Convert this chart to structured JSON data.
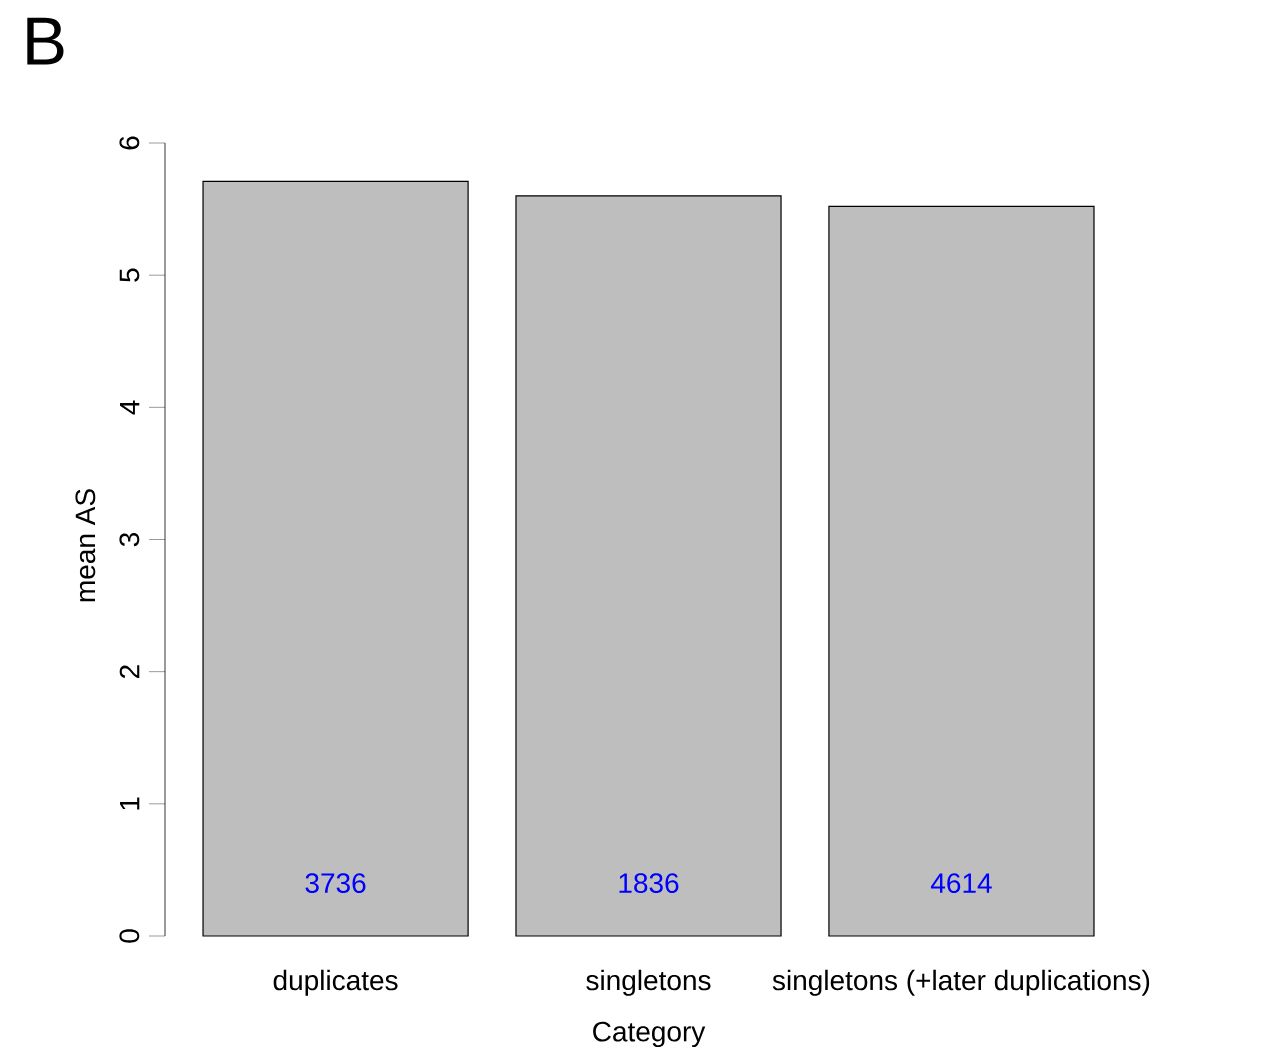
{
  "chart_data": {
    "type": "bar",
    "title": "B",
    "xlabel": "Category",
    "ylabel": "mean AS",
    "categories": [
      "duplicates",
      "singletons",
      "singletons (+later duplications)"
    ],
    "values": [
      5.71,
      5.6,
      5.52
    ],
    "color": "#bebebe",
    "ylim": [
      0,
      6
    ],
    "yticks": [
      0,
      1,
      2,
      3,
      4,
      5,
      6
    ],
    "grid": false,
    "annotations": [
      "3736",
      "1836",
      "4614"
    ]
  }
}
